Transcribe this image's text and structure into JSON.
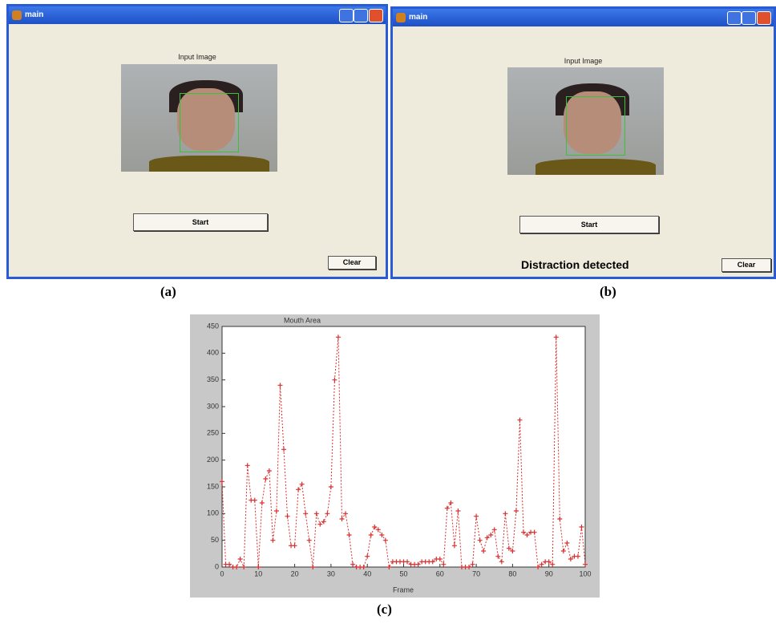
{
  "windows": [
    {
      "title": "main",
      "heading": "Input Image",
      "buttons": [
        "Start",
        "Clear"
      ],
      "caption": "(a)"
    },
    {
      "title": "main",
      "heading": "Input Image",
      "buttons": [
        "Start",
        "Clear"
      ],
      "status": "Distraction detected",
      "caption": "(b)"
    }
  ],
  "chart_data": {
    "type": "line",
    "title": "Mouth Area",
    "x_label": "Frame",
    "caption": "(c)",
    "x": [
      0,
      1,
      2,
      3,
      4,
      5,
      6,
      7,
      8,
      9,
      10,
      11,
      12,
      13,
      14,
      15,
      16,
      17,
      18,
      19,
      20,
      21,
      22,
      23,
      24,
      25,
      26,
      27,
      28,
      29,
      30,
      31,
      32,
      33,
      34,
      35,
      36,
      37,
      38,
      39,
      40,
      41,
      42,
      43,
      44,
      45,
      46,
      47,
      48,
      49,
      50,
      51,
      52,
      53,
      54,
      55,
      56,
      57,
      58,
      59,
      60,
      61,
      62,
      63,
      64,
      65,
      66,
      67,
      68,
      69,
      70,
      71,
      72,
      73,
      74,
      75,
      76,
      77,
      78,
      79,
      80,
      81,
      82,
      83,
      84,
      85,
      86,
      87,
      88,
      89,
      90,
      91,
      92,
      93,
      94,
      95,
      96,
      97,
      98,
      99,
      100
    ],
    "series": [
      {
        "color": "#d83030",
        "values": [
          160,
          5,
          5,
          0,
          0,
          15,
          0,
          190,
          125,
          125,
          0,
          120,
          165,
          180,
          50,
          105,
          340,
          220,
          95,
          40,
          40,
          145,
          155,
          100,
          50,
          0,
          100,
          80,
          85,
          100,
          150,
          350,
          430,
          90,
          100,
          60,
          5,
          0,
          0,
          0,
          20,
          60,
          75,
          70,
          60,
          50,
          0,
          10,
          10,
          10,
          10,
          10,
          5,
          5,
          5,
          10,
          10,
          10,
          10,
          15,
          15,
          5,
          110,
          120,
          40,
          105,
          0,
          0,
          0,
          5,
          95,
          50,
          30,
          55,
          60,
          70,
          20,
          10,
          100,
          35,
          30,
          105,
          275,
          65,
          60,
          65,
          65,
          0,
          5,
          10,
          10,
          5,
          430,
          90,
          30,
          45,
          15,
          20,
          20,
          75,
          5
        ]
      }
    ],
    "xlim": [
      0,
      100
    ],
    "xticks": [
      0,
      10,
      20,
      30,
      40,
      50,
      60,
      70,
      80,
      90,
      100
    ],
    "ylim": [
      0,
      450
    ],
    "yticks": [
      0,
      50,
      100,
      150,
      200,
      250,
      300,
      350,
      400,
      450
    ]
  }
}
